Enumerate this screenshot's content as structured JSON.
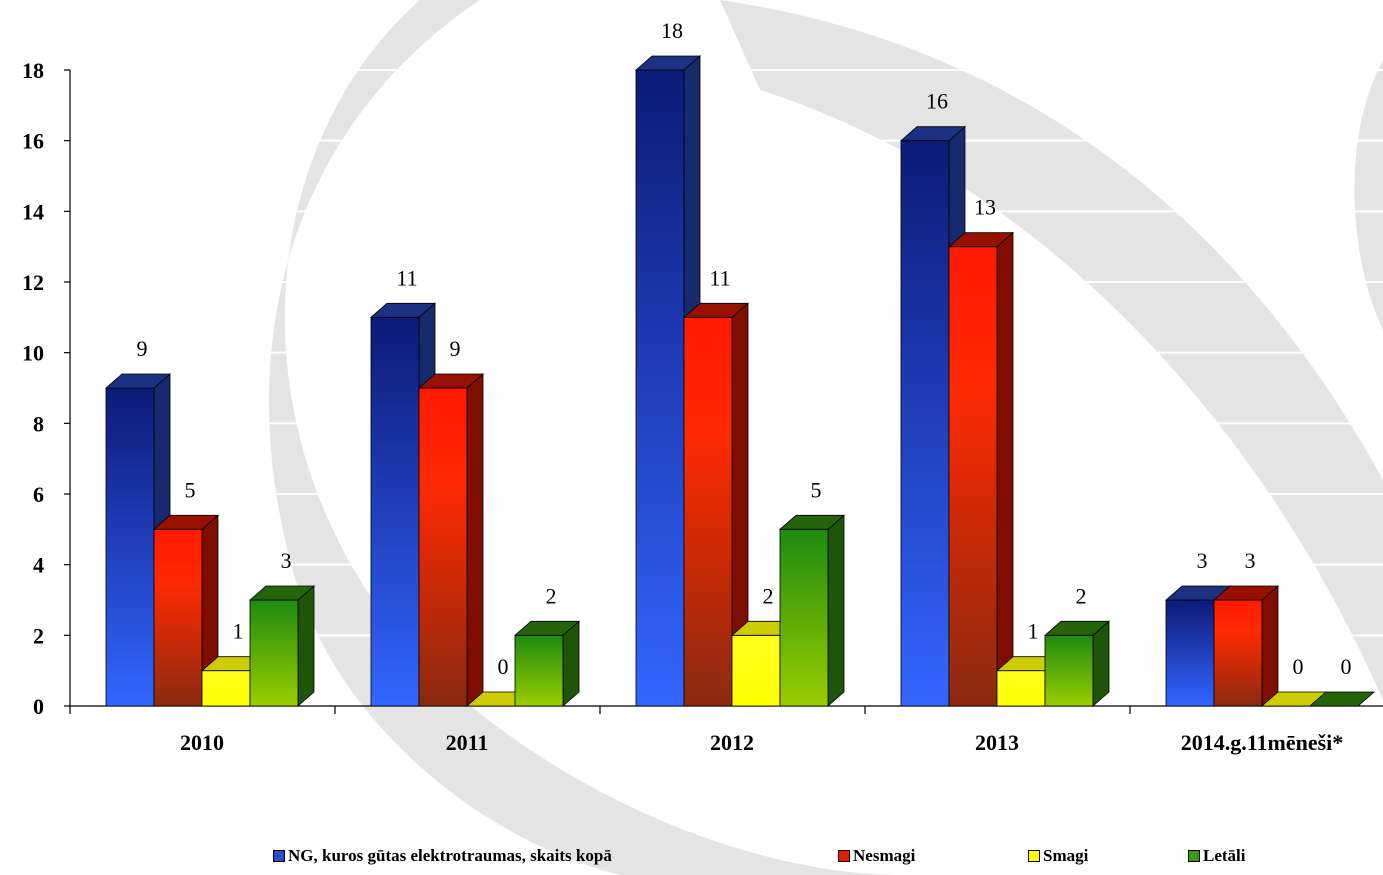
{
  "chart_data": {
    "type": "bar",
    "categories": [
      "2010",
      "2011",
      "2012",
      "2013",
      "2014.g.11mēneši*"
    ],
    "series": [
      {
        "name": "NG, kuros gūtas elektrotraumas,  skaits kopā",
        "values": [
          9,
          11,
          18,
          16,
          3
        ],
        "color": "#2b4cc8"
      },
      {
        "name": "Nesmagi",
        "values": [
          5,
          9,
          11,
          13,
          3
        ],
        "color": "#e81a00"
      },
      {
        "name": "Smagi",
        "values": [
          1,
          0,
          2,
          1,
          0
        ],
        "color": "#ffff00"
      },
      {
        "name": "Letāli",
        "values": [
          3,
          2,
          5,
          2,
          0
        ],
        "color": "#3a9a10"
      }
    ],
    "ylim": [
      0,
      18
    ],
    "yticks": [
      "0",
      "2",
      "4",
      "6",
      "8",
      "10",
      "12",
      "14",
      "16",
      "18"
    ],
    "grid": true,
    "legend_position": "bottom",
    "title": "",
    "xlabel": "",
    "ylabel": ""
  }
}
